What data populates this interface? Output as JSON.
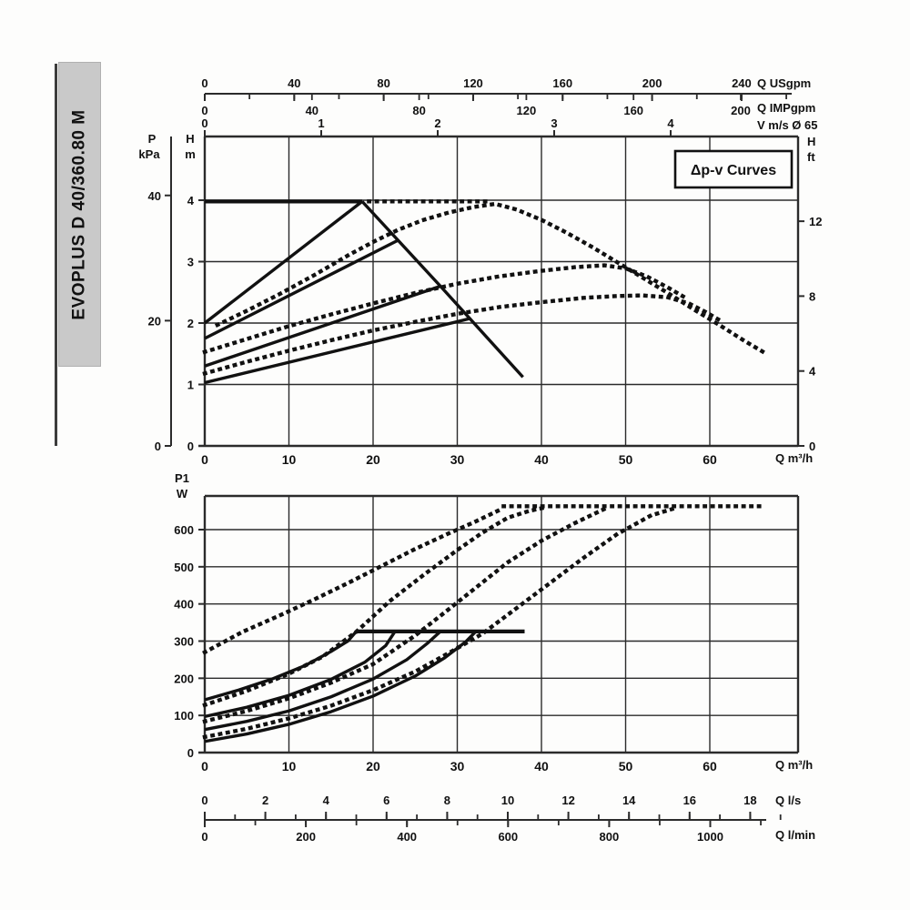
{
  "sidebar": {
    "model": "EVOPLUS D 40/360.80 M"
  },
  "colors": {
    "ink": "#111111",
    "grid": "#2b2b2b",
    "panel_gray": "#c9c9c9",
    "paper": "#fdfdfc"
  },
  "chart_data": [
    {
      "id": "head-flow-chart",
      "type": "line",
      "annotation": "Δp-v Curves",
      "axes": {
        "q_m3h": {
          "label": "Q m³/h",
          "ticks": [
            0,
            10,
            20,
            30,
            40,
            50,
            60
          ],
          "range": [
            0,
            70.5
          ]
        },
        "h_m": {
          "label_lines": [
            "H",
            "m"
          ],
          "ticks": [
            0,
            1,
            2,
            3,
            4
          ],
          "range": [
            0,
            5.04
          ]
        },
        "p_kpa": {
          "label_lines": [
            "P",
            "kPa"
          ],
          "ticks": [
            0,
            20,
            40
          ]
        },
        "h_ft": {
          "label_lines": [
            "H",
            "ft"
          ],
          "ticks": [
            0,
            4,
            8,
            12
          ]
        },
        "q_usgpm": {
          "label": "Q USgpm",
          "ticks": [
            0,
            40,
            80,
            120,
            160,
            200,
            240
          ],
          "minor_step": 20,
          "minor_max": 260
        },
        "q_impgpm": {
          "label": "Q IMPgpm",
          "ticks": [
            0,
            40,
            80,
            120,
            160,
            200
          ]
        },
        "v_ms": {
          "label": "V m/s Ø 65",
          "ticks": [
            0,
            1,
            2,
            3,
            4
          ]
        }
      },
      "series": [
        {
          "name": "setpoint-max-horizontal",
          "style": "solid",
          "weight": "heavy",
          "points": [
            [
              0,
              3.98
            ],
            [
              18.7,
              3.98
            ]
          ]
        },
        {
          "name": "setpoint-line-4m",
          "style": "solid",
          "weight": "normal",
          "points": [
            [
              0,
              2.0
            ],
            [
              18.7,
              3.98
            ]
          ]
        },
        {
          "name": "max-speed-descent",
          "style": "solid",
          "weight": "normal",
          "points": [
            [
              18.7,
              3.98
            ],
            [
              28,
              2.6
            ],
            [
              37.8,
              1.12
            ]
          ]
        },
        {
          "name": "setpoint-line-3.4m",
          "style": "solid",
          "weight": "normal",
          "points": [
            [
              0,
              1.75
            ],
            [
              23,
              3.35
            ]
          ]
        },
        {
          "name": "setpoint-line-2.6m",
          "style": "solid",
          "weight": "normal",
          "points": [
            [
              0,
              1.3
            ],
            [
              28,
              2.6
            ]
          ]
        },
        {
          "name": "setpoint-line-2.1m",
          "style": "solid",
          "weight": "normal",
          "points": [
            [
              0,
              1.03
            ],
            [
              31.4,
              2.07
            ]
          ]
        },
        {
          "name": "dpv-extension-horizontal",
          "style": "dotted",
          "weight": "normal",
          "points": [
            [
              19.5,
              3.98
            ],
            [
              33.8,
              3.98
            ]
          ]
        },
        {
          "name": "dpv-curve-1",
          "style": "dotted",
          "weight": "normal",
          "points": [
            [
              1.5,
              1.97
            ],
            [
              5,
              2.2
            ],
            [
              9,
              2.48
            ],
            [
              13,
              2.78
            ],
            [
              17,
              3.1
            ],
            [
              20,
              3.32
            ],
            [
              23,
              3.52
            ],
            [
              26,
              3.68
            ],
            [
              29,
              3.8
            ],
            [
              32,
              3.89
            ],
            [
              34.5,
              3.94
            ],
            [
              37,
              3.85
            ],
            [
              40,
              3.68
            ],
            [
              43,
              3.47
            ],
            [
              46,
              3.24
            ],
            [
              49,
              2.99
            ],
            [
              52,
              2.74
            ],
            [
              55,
              2.49
            ],
            [
              58,
              2.23
            ],
            [
              61,
              1.98
            ],
            [
              64,
              1.72
            ],
            [
              66.7,
              1.5
            ]
          ]
        },
        {
          "name": "dpv-curve-2",
          "style": "dotted",
          "weight": "normal",
          "points": [
            [
              0,
              1.53
            ],
            [
              5,
              1.74
            ],
            [
              10,
              1.95
            ],
            [
              15,
              2.14
            ],
            [
              20,
              2.32
            ],
            [
              25,
              2.49
            ],
            [
              30,
              2.64
            ],
            [
              35,
              2.76
            ],
            [
              40,
              2.85
            ],
            [
              44,
              2.91
            ],
            [
              47.5,
              2.94
            ],
            [
              50,
              2.89
            ],
            [
              52.5,
              2.76
            ],
            [
              55,
              2.58
            ],
            [
              57,
              2.42
            ]
          ]
        },
        {
          "name": "dpv-curve-3",
          "style": "dotted",
          "weight": "normal",
          "points": [
            [
              0,
              1.18
            ],
            [
              5,
              1.37
            ],
            [
              10,
              1.55
            ],
            [
              15,
              1.72
            ],
            [
              20,
              1.88
            ],
            [
              25,
              2.02
            ],
            [
              30,
              2.15
            ],
            [
              35,
              2.26
            ],
            [
              40,
              2.34
            ],
            [
              45,
              2.41
            ],
            [
              49,
              2.44
            ],
            [
              52,
              2.45
            ],
            [
              55,
              2.42
            ],
            [
              57.5,
              2.32
            ],
            [
              59.5,
              2.18
            ],
            [
              61.5,
              2.02
            ]
          ]
        }
      ]
    },
    {
      "id": "power-flow-chart",
      "type": "line",
      "axes": {
        "q_m3h": {
          "label": "Q m³/h",
          "ticks": [
            0,
            10,
            20,
            30,
            40,
            50,
            60
          ],
          "range": [
            0,
            70.5
          ]
        },
        "p1_w": {
          "label_lines": [
            "P1",
            "W"
          ],
          "ticks": [
            0,
            100,
            200,
            300,
            400,
            500,
            600
          ],
          "range": [
            0,
            690
          ]
        },
        "q_ls": {
          "label": "Q l/s",
          "ticks": [
            0,
            2,
            4,
            6,
            8,
            10,
            12,
            14,
            16,
            18
          ],
          "minor_step": 1,
          "minor_max": 19
        },
        "q_lmin": {
          "label": "Q l/min",
          "ticks": [
            0,
            200,
            400,
            600,
            800,
            1000
          ],
          "minor_step": 100,
          "minor_max": 1100
        }
      },
      "series": [
        {
          "name": "p1-solid-plateau",
          "style": "solid",
          "weight": "heavy",
          "points": [
            [
              18,
              326
            ],
            [
              38,
              326
            ]
          ]
        },
        {
          "name": "p1-solid-1",
          "style": "solid",
          "weight": "normal",
          "points": [
            [
              0,
              142
            ],
            [
              4,
              168
            ],
            [
              8,
              198
            ],
            [
              12,
              235
            ],
            [
              15,
              272
            ],
            [
              17,
              300
            ],
            [
              18,
              326
            ]
          ]
        },
        {
          "name": "p1-solid-2",
          "style": "solid",
          "weight": "normal",
          "points": [
            [
              0,
              97
            ],
            [
              5,
              122
            ],
            [
              10,
              154
            ],
            [
              15,
              197
            ],
            [
              19,
              243
            ],
            [
              21.5,
              288
            ],
            [
              22.6,
              326
            ]
          ]
        },
        {
          "name": "p1-solid-3",
          "style": "solid",
          "weight": "normal",
          "points": [
            [
              0,
              62
            ],
            [
              5,
              84
            ],
            [
              10,
              112
            ],
            [
              15,
              150
            ],
            [
              20,
              198
            ],
            [
              24,
              250
            ],
            [
              26.5,
              295
            ],
            [
              28,
              326
            ]
          ]
        },
        {
          "name": "p1-solid-4",
          "style": "solid",
          "weight": "normal",
          "points": [
            [
              0,
              30
            ],
            [
              5,
              50
            ],
            [
              10,
              76
            ],
            [
              15,
              110
            ],
            [
              20,
              152
            ],
            [
              25,
              206
            ],
            [
              28.5,
              255
            ],
            [
              31,
              298
            ],
            [
              32.2,
              326
            ]
          ]
        },
        {
          "name": "p1-dotted-plateau",
          "style": "dotted",
          "weight": "normal",
          "points": [
            [
              35.5,
              663
            ],
            [
              66.5,
              663
            ]
          ]
        },
        {
          "name": "p1-dotted-1",
          "style": "dotted",
          "weight": "normal",
          "points": [
            [
              0,
              270
            ],
            [
              4.5,
              325
            ],
            [
              9,
              370
            ],
            [
              13,
              412
            ],
            [
              17,
              456
            ],
            [
              21,
              502
            ],
            [
              25,
              548
            ],
            [
              29,
              590
            ],
            [
              32,
              620
            ],
            [
              35.5,
              658
            ]
          ]
        },
        {
          "name": "p1-dotted-2",
          "style": "dotted",
          "weight": "normal",
          "points": [
            [
              0,
              128
            ],
            [
              5,
              166
            ],
            [
              10,
              212
            ],
            [
              14,
              258
            ],
            [
              18,
              325
            ],
            [
              22,
              408
            ],
            [
              26,
              478
            ],
            [
              30,
              545
            ],
            [
              33,
              592
            ],
            [
              36,
              632
            ],
            [
              38.5,
              650
            ],
            [
              40.5,
              660
            ]
          ]
        },
        {
          "name": "p1-dotted-3",
          "style": "dotted",
          "weight": "normal",
          "points": [
            [
              0,
              84
            ],
            [
              5,
              112
            ],
            [
              10,
              146
            ],
            [
              15,
              188
            ],
            [
              20,
              238
            ],
            [
              25,
              315
            ],
            [
              28,
              368
            ],
            [
              32,
              440
            ],
            [
              36,
              512
            ],
            [
              40,
              570
            ],
            [
              44,
              618
            ],
            [
              47.7,
              658
            ]
          ]
        },
        {
          "name": "p1-dotted-4",
          "style": "dotted",
          "weight": "normal",
          "points": [
            [
              0,
              42
            ],
            [
              5,
              64
            ],
            [
              10,
              92
            ],
            [
              15,
              126
            ],
            [
              20,
              168
            ],
            [
              25,
              218
            ],
            [
              29,
              268
            ],
            [
              33,
              320
            ],
            [
              37,
              388
            ],
            [
              41,
              456
            ],
            [
              45,
              524
            ],
            [
              49,
              588
            ],
            [
              53,
              638
            ],
            [
              55.9,
              658
            ]
          ]
        }
      ]
    }
  ]
}
